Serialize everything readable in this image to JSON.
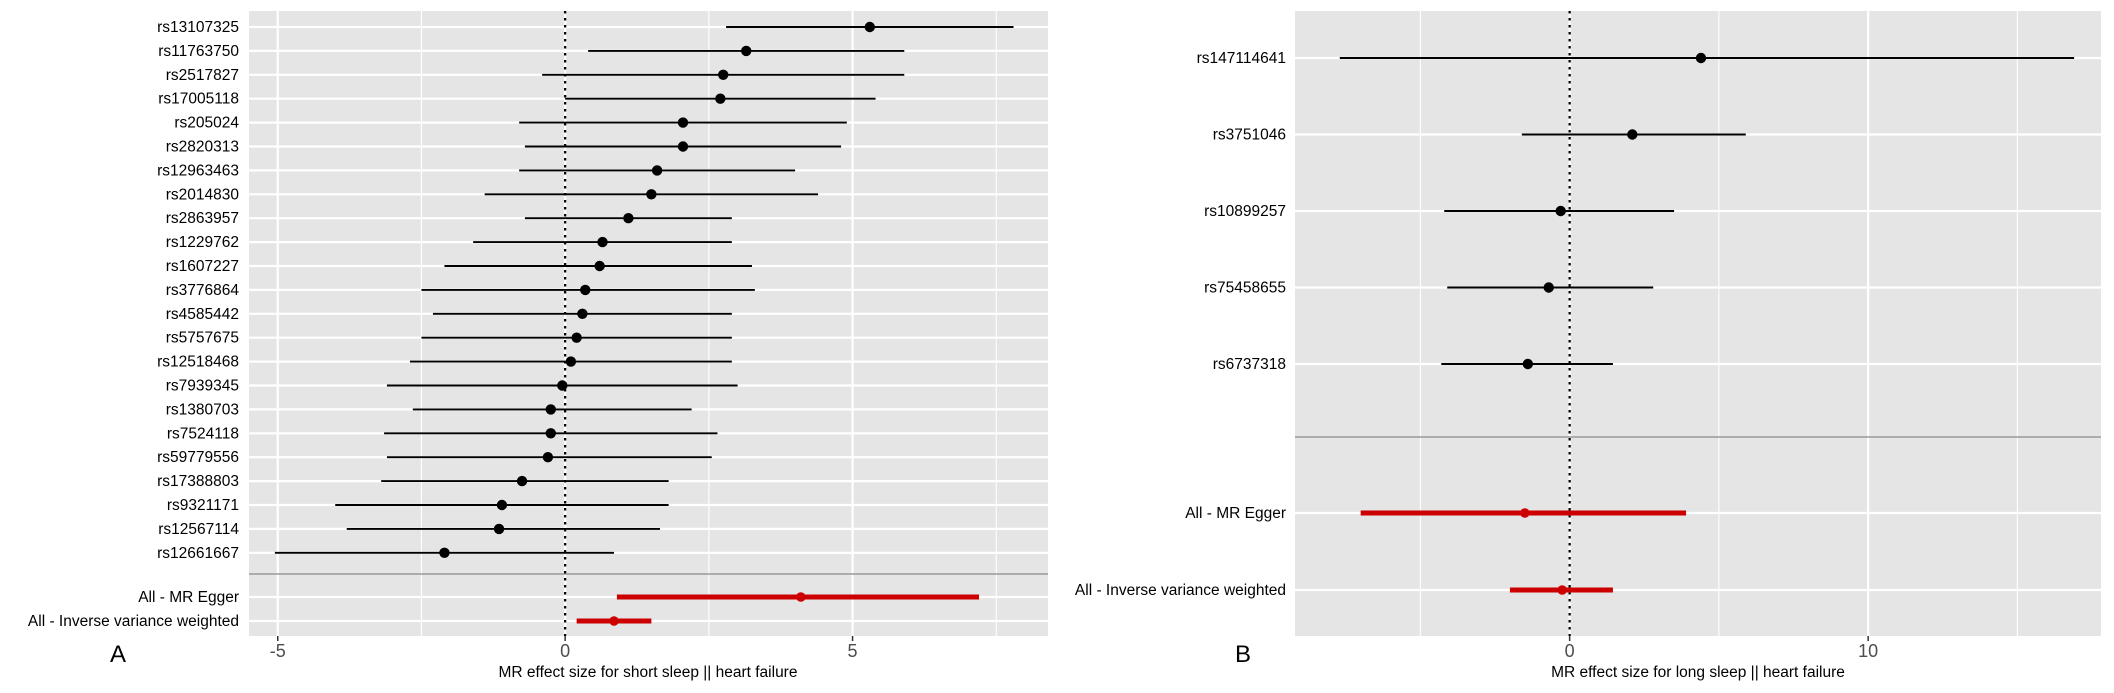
{
  "colors": {
    "panel_bg": "#e5e5e5",
    "grid": "#ffffff",
    "point": "#000000",
    "summary": "#cc0000",
    "divider": "#999999",
    "text": "#000000"
  },
  "chart_data": [
    {
      "type": "forest",
      "panel_label": "A",
      "xlabel": "MR effect size for short sleep || heart failure",
      "xlim": [
        -5.5,
        8.4
      ],
      "xticks": [
        -5,
        0,
        5
      ],
      "xtick_labels": [
        "-5",
        "0",
        "5"
      ],
      "reference_line": 0,
      "grid": true,
      "snps": [
        {
          "label": "rs13107325",
          "b": 5.3,
          "lo": 2.8,
          "hi": 7.8
        },
        {
          "label": "rs11763750",
          "b": 3.15,
          "lo": 0.4,
          "hi": 5.9
        },
        {
          "label": "rs2517827",
          "b": 2.75,
          "lo": -0.4,
          "hi": 5.9
        },
        {
          "label": "rs17005118",
          "b": 2.7,
          "lo": 0.0,
          "hi": 5.4
        },
        {
          "label": "rs205024",
          "b": 2.05,
          "lo": -0.8,
          "hi": 4.9
        },
        {
          "label": "rs2820313",
          "b": 2.05,
          "lo": -0.7,
          "hi": 4.8
        },
        {
          "label": "rs12963463",
          "b": 1.6,
          "lo": -0.8,
          "hi": 4.0
        },
        {
          "label": "rs2014830",
          "b": 1.5,
          "lo": -1.4,
          "hi": 4.4
        },
        {
          "label": "rs2863957",
          "b": 1.1,
          "lo": -0.7,
          "hi": 2.9
        },
        {
          "label": "rs1229762",
          "b": 0.65,
          "lo": -1.6,
          "hi": 2.9
        },
        {
          "label": "rs1607227",
          "b": 0.6,
          "lo": -2.1,
          "hi": 3.25
        },
        {
          "label": "rs3776864",
          "b": 0.35,
          "lo": -2.5,
          "hi": 3.3
        },
        {
          "label": "rs4585442",
          "b": 0.3,
          "lo": -2.3,
          "hi": 2.9
        },
        {
          "label": "rs5757675",
          "b": 0.2,
          "lo": -2.5,
          "hi": 2.9
        },
        {
          "label": "rs12518468",
          "b": 0.1,
          "lo": -2.7,
          "hi": 2.9
        },
        {
          "label": "rs7939345",
          "b": -0.05,
          "lo": -3.1,
          "hi": 3.0
        },
        {
          "label": "rs1380703",
          "b": -0.25,
          "lo": -2.65,
          "hi": 2.2
        },
        {
          "label": "rs7524118",
          "b": -0.25,
          "lo": -3.15,
          "hi": 2.65
        },
        {
          "label": "rs59779556",
          "b": -0.3,
          "lo": -3.1,
          "hi": 2.55
        },
        {
          "label": "rs17388803",
          "b": -0.75,
          "lo": -3.2,
          "hi": 1.8
        },
        {
          "label": "rs9321171",
          "b": -1.1,
          "lo": -4.0,
          "hi": 1.8
        },
        {
          "label": "rs12567114",
          "b": -1.15,
          "lo": -3.8,
          "hi": 1.65
        },
        {
          "label": "rs12661667",
          "b": -2.1,
          "lo": -5.05,
          "hi": 0.85
        }
      ],
      "summary": [
        {
          "label": "All - MR Egger",
          "b": 4.1,
          "lo": 0.9,
          "hi": 7.2
        },
        {
          "label": "All - Inverse variance weighted",
          "b": 0.85,
          "lo": 0.2,
          "hi": 1.5
        }
      ]
    },
    {
      "type": "forest",
      "panel_label": "B",
      "xlabel": "MR effect size for long sleep || heart failure",
      "xlim": [
        -9.2,
        17.8
      ],
      "xticks": [
        0,
        10
      ],
      "xtick_labels": [
        "0",
        "10"
      ],
      "reference_line": 0,
      "grid": true,
      "snps": [
        {
          "label": "rs147114641",
          "b": 4.4,
          "lo": -7.7,
          "hi": 16.9
        },
        {
          "label": "rs3751046",
          "b": 2.1,
          "lo": -1.6,
          "hi": 5.9
        },
        {
          "label": "rs10899257",
          "b": -0.3,
          "lo": -4.2,
          "hi": 3.5
        },
        {
          "label": "rs75458655",
          "b": -0.7,
          "lo": -4.1,
          "hi": 2.8
        },
        {
          "label": "rs6737318",
          "b": -1.4,
          "lo": -4.3,
          "hi": 1.45
        }
      ],
      "summary": [
        {
          "label": "All - MR Egger",
          "b": -1.5,
          "lo": -7.0,
          "hi": 3.9
        },
        {
          "label": "All - Inverse variance weighted",
          "b": -0.25,
          "lo": -2.0,
          "hi": 1.45
        }
      ]
    }
  ]
}
